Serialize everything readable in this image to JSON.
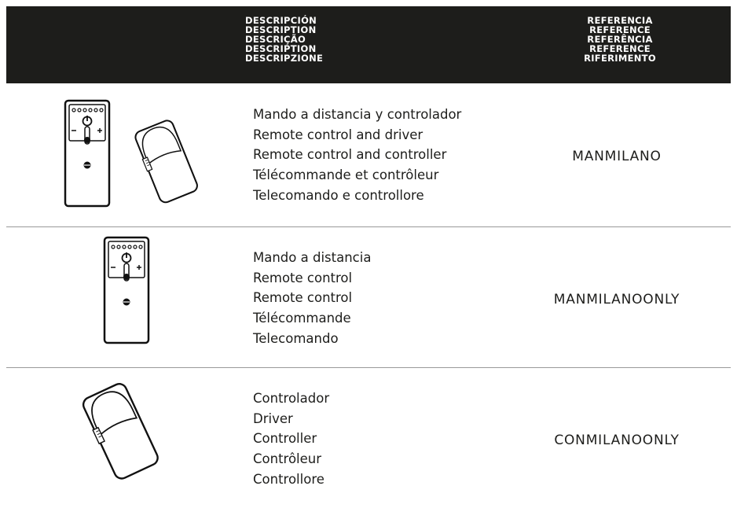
{
  "header": {
    "description": [
      "DESCRIPCIÓN",
      "DESCRIPTION",
      "DESCRIÇÃO",
      "DESCRIPTION",
      "DESCRIPZIONE"
    ],
    "reference": [
      "REFERENCIA",
      "REFERENCE",
      "REFERÊNCIA",
      "REFERENCE",
      "RIFERIMENTO"
    ]
  },
  "rows": [
    {
      "description": [
        "Mando a distancia y controlador",
        "Remote control and driver",
        "Remote control and controller",
        "Télécommande et contrôleur",
        "Telecomando e controllore"
      ],
      "reference": "MANMILANO"
    },
    {
      "description": [
        "Mando a distancia",
        "Remote control",
        "Remote control",
        "Télécommande",
        "Telecomando"
      ],
      "reference": "MANMILANOONLY"
    },
    {
      "description": [
        "Controlador",
        "Driver",
        "Controller",
        "Contrôleur",
        "Controllore"
      ],
      "reference": "CONMILANOONLY"
    }
  ]
}
